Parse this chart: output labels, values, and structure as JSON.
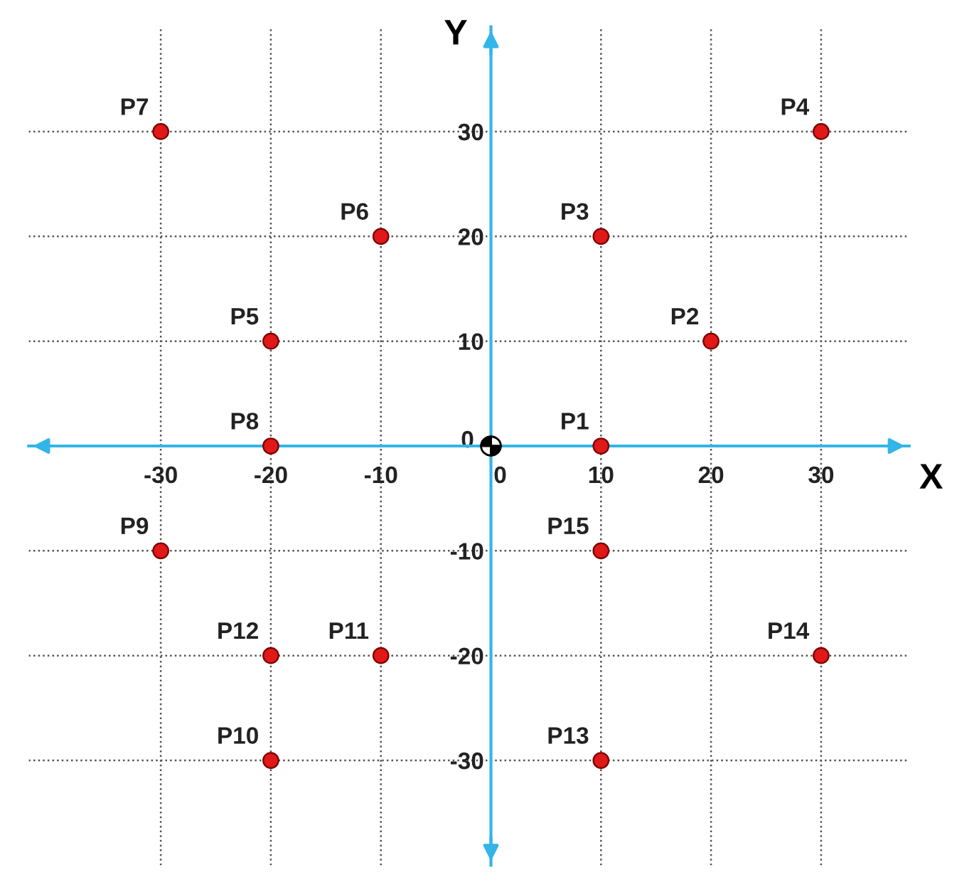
{
  "chart_data": {
    "type": "scatter",
    "xlabel": "X",
    "ylabel": "Y",
    "x": [
      10,
      20,
      10,
      30,
      -20,
      -10,
      -30,
      -20,
      -30,
      -20,
      -10,
      -20,
      10,
      30,
      10
    ],
    "series": [
      {
        "color": "#e01818",
        "values": [
          0,
          10,
          20,
          30,
          10,
          20,
          30,
          0,
          -10,
          -30,
          -20,
          -20,
          -30,
          -20,
          -10
        ]
      }
    ],
    "annotations": [
      {
        "text": "P1",
        "x": 10,
        "y": 0
      },
      {
        "text": "P2",
        "x": 20,
        "y": 10
      },
      {
        "text": "P3",
        "x": 10,
        "y": 20
      },
      {
        "text": "P4",
        "x": 30,
        "y": 30
      },
      {
        "text": "P5",
        "x": -20,
        "y": 10
      },
      {
        "text": "P6",
        "x": -10,
        "y": 20
      },
      {
        "text": "P7",
        "x": -30,
        "y": 30
      },
      {
        "text": "P8",
        "x": -20,
        "y": 0
      },
      {
        "text": "P9",
        "x": -30,
        "y": -10
      },
      {
        "text": "P10",
        "x": -20,
        "y": -30
      },
      {
        "text": "P11",
        "x": -10,
        "y": -20
      },
      {
        "text": "P12",
        "x": -20,
        "y": -20
      },
      {
        "text": "P13",
        "x": 10,
        "y": -30
      },
      {
        "text": "P14",
        "x": 30,
        "y": -20
      },
      {
        "text": "P15",
        "x": 10,
        "y": -10
      }
    ],
    "xlim": [
      -42,
      38
    ],
    "ylim": [
      -40,
      40
    ],
    "xticks": [
      -30,
      -20,
      -10,
      0,
      10,
      20,
      30
    ],
    "yticks": [
      -30,
      -20,
      -10,
      0,
      10,
      20,
      30
    ],
    "grid": true,
    "marker": "circle"
  }
}
